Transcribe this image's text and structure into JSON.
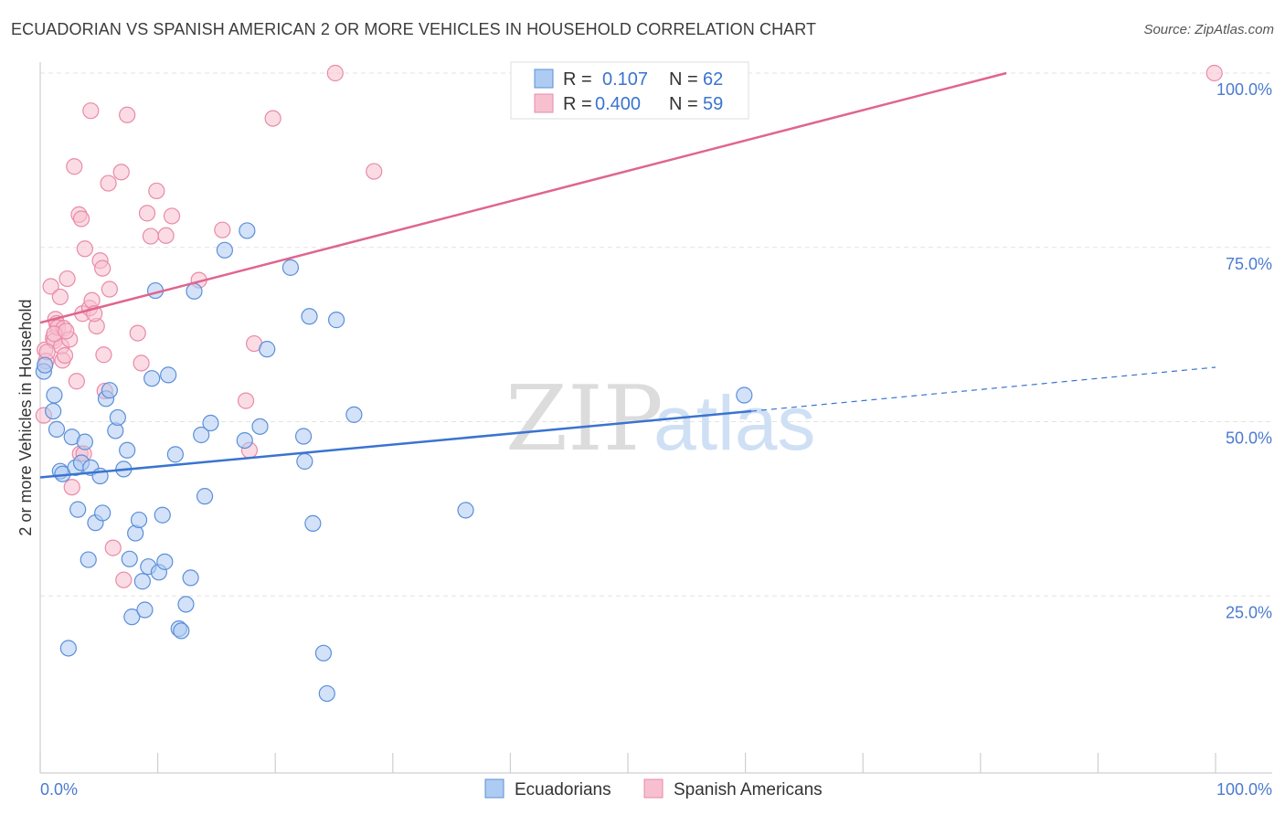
{
  "header": {
    "title": "ECUADORIAN VS SPANISH AMERICAN 2 OR MORE VEHICLES IN HOUSEHOLD CORRELATION CHART",
    "source": "Source: ZipAtlas.com"
  },
  "watermark": {
    "part1": "ZIP",
    "part2": "atlas"
  },
  "colors": {
    "blue_fill": "#aecbf2",
    "blue_stroke": "#5b8fd9",
    "blue_line": "#3a74cf",
    "pink_fill": "#f7c0d0",
    "pink_stroke": "#e98aa8",
    "pink_line": "#e0658d",
    "value_text": "#3a74cf",
    "grid": "#e3e3e3"
  },
  "legend": {
    "r_label": "R =",
    "n_label": "N =",
    "rows": [
      {
        "r": "0.107",
        "n": "62"
      },
      {
        "r": "0.400",
        "n": "59"
      }
    ]
  },
  "chart_data": {
    "type": "scatter",
    "ylabel": "2 or more Vehicles in Household",
    "xlim": [
      0,
      100
    ],
    "ylim": [
      0,
      100
    ],
    "x_tick_labels": [
      "0.0%",
      "100.0%"
    ],
    "y_ticks": [
      {
        "value": 100,
        "label": "100.0%"
      },
      {
        "value": 75,
        "label": "75.0%"
      },
      {
        "value": 50,
        "label": "50.0%"
      },
      {
        "value": 25,
        "label": "25.0%"
      }
    ],
    "series": [
      {
        "name": "Ecuadorians",
        "r": 0.107,
        "n": 62,
        "trend": {
          "x0": 0,
          "y0": 42.0,
          "x1": 60.5,
          "y1": 51.5,
          "dash_x1": 100,
          "dash_y1": 57.8
        },
        "points": [
          [
            0.3,
            57.2
          ],
          [
            1.1,
            51.5
          ],
          [
            1.2,
            53.8
          ],
          [
            1.4,
            48.9
          ],
          [
            1.7,
            42.9
          ],
          [
            1.9,
            42.5
          ],
          [
            2.4,
            17.5
          ],
          [
            2.7,
            47.8
          ],
          [
            3.0,
            43.4
          ],
          [
            3.2,
            37.4
          ],
          [
            3.5,
            44.1
          ],
          [
            3.8,
            47.1
          ],
          [
            4.1,
            30.2
          ],
          [
            4.3,
            43.4
          ],
          [
            4.7,
            35.5
          ],
          [
            5.1,
            42.2
          ],
          [
            5.3,
            36.9
          ],
          [
            5.6,
            53.3
          ],
          [
            5.9,
            54.5
          ],
          [
            6.4,
            48.7
          ],
          [
            6.6,
            50.6
          ],
          [
            7.1,
            43.2
          ],
          [
            7.4,
            45.9
          ],
          [
            7.6,
            30.3
          ],
          [
            7.8,
            22.0
          ],
          [
            8.1,
            34.0
          ],
          [
            8.4,
            35.9
          ],
          [
            8.7,
            27.1
          ],
          [
            8.9,
            23.0
          ],
          [
            9.2,
            29.2
          ],
          [
            9.5,
            56.2
          ],
          [
            9.8,
            68.8
          ],
          [
            10.1,
            28.4
          ],
          [
            10.4,
            36.6
          ],
          [
            10.6,
            29.9
          ],
          [
            10.9,
            56.7
          ],
          [
            11.5,
            45.3
          ],
          [
            11.8,
            20.3
          ],
          [
            12.0,
            20.0
          ],
          [
            12.4,
            23.8
          ],
          [
            12.8,
            27.6
          ],
          [
            13.1,
            68.7
          ],
          [
            13.7,
            48.1
          ],
          [
            14.0,
            39.3
          ],
          [
            14.5,
            49.8
          ],
          [
            15.7,
            74.6
          ],
          [
            17.4,
            47.3
          ],
          [
            17.6,
            77.4
          ],
          [
            18.7,
            49.3
          ],
          [
            19.3,
            60.4
          ],
          [
            21.3,
            72.1
          ],
          [
            22.4,
            47.9
          ],
          [
            22.5,
            44.3
          ],
          [
            22.9,
            65.1
          ],
          [
            23.2,
            35.4
          ],
          [
            24.1,
            16.8
          ],
          [
            24.4,
            11.0
          ],
          [
            25.2,
            64.6
          ],
          [
            26.7,
            51.0
          ],
          [
            36.2,
            37.3
          ],
          [
            59.9,
            53.8
          ],
          [
            0.4,
            58.1
          ]
        ]
      },
      {
        "name": "Spanish Americans",
        "r": 0.4,
        "n": 59,
        "trend": {
          "x0": 0,
          "y0": 64.2,
          "x1": 82.2,
          "y1": 100
        },
        "points": [
          [
            0.3,
            50.9
          ],
          [
            0.4,
            60.3
          ],
          [
            0.5,
            58.7
          ],
          [
            0.9,
            69.4
          ],
          [
            1.1,
            62.0
          ],
          [
            1.2,
            61.6
          ],
          [
            1.3,
            64.7
          ],
          [
            1.4,
            64.1
          ],
          [
            1.5,
            63.5
          ],
          [
            1.7,
            67.9
          ],
          [
            1.8,
            60.8
          ],
          [
            1.9,
            58.8
          ],
          [
            2.0,
            63.4
          ],
          [
            2.1,
            59.5
          ],
          [
            2.3,
            70.5
          ],
          [
            2.5,
            61.8
          ],
          [
            2.7,
            40.6
          ],
          [
            2.9,
            86.6
          ],
          [
            3.1,
            55.8
          ],
          [
            3.3,
            79.7
          ],
          [
            3.4,
            45.4
          ],
          [
            3.5,
            79.1
          ],
          [
            3.6,
            65.5
          ],
          [
            3.7,
            45.4
          ],
          [
            3.8,
            74.8
          ],
          [
            4.2,
            66.3
          ],
          [
            4.3,
            94.6
          ],
          [
            4.4,
            67.4
          ],
          [
            4.8,
            63.7
          ],
          [
            5.1,
            73.1
          ],
          [
            5.3,
            72.0
          ],
          [
            5.4,
            59.6
          ],
          [
            5.5,
            54.4
          ],
          [
            5.8,
            84.2
          ],
          [
            5.9,
            69.0
          ],
          [
            6.2,
            31.9
          ],
          [
            6.9,
            85.8
          ],
          [
            7.1,
            27.3
          ],
          [
            7.4,
            94.0
          ],
          [
            8.3,
            62.7
          ],
          [
            8.6,
            58.4
          ],
          [
            9.1,
            79.9
          ],
          [
            9.4,
            76.6
          ],
          [
            9.9,
            83.1
          ],
          [
            10.7,
            76.7
          ],
          [
            11.2,
            79.5
          ],
          [
            13.5,
            70.3
          ],
          [
            15.5,
            77.5
          ],
          [
            17.5,
            53.0
          ],
          [
            17.8,
            45.9
          ],
          [
            18.2,
            61.2
          ],
          [
            19.8,
            93.5
          ],
          [
            25.1,
            100.0
          ],
          [
            28.4,
            85.9
          ],
          [
            99.9,
            100.0
          ],
          [
            1.2,
            62.6
          ],
          [
            4.6,
            65.5
          ],
          [
            2.2,
            63.0
          ],
          [
            0.6,
            60.0
          ]
        ]
      }
    ]
  }
}
